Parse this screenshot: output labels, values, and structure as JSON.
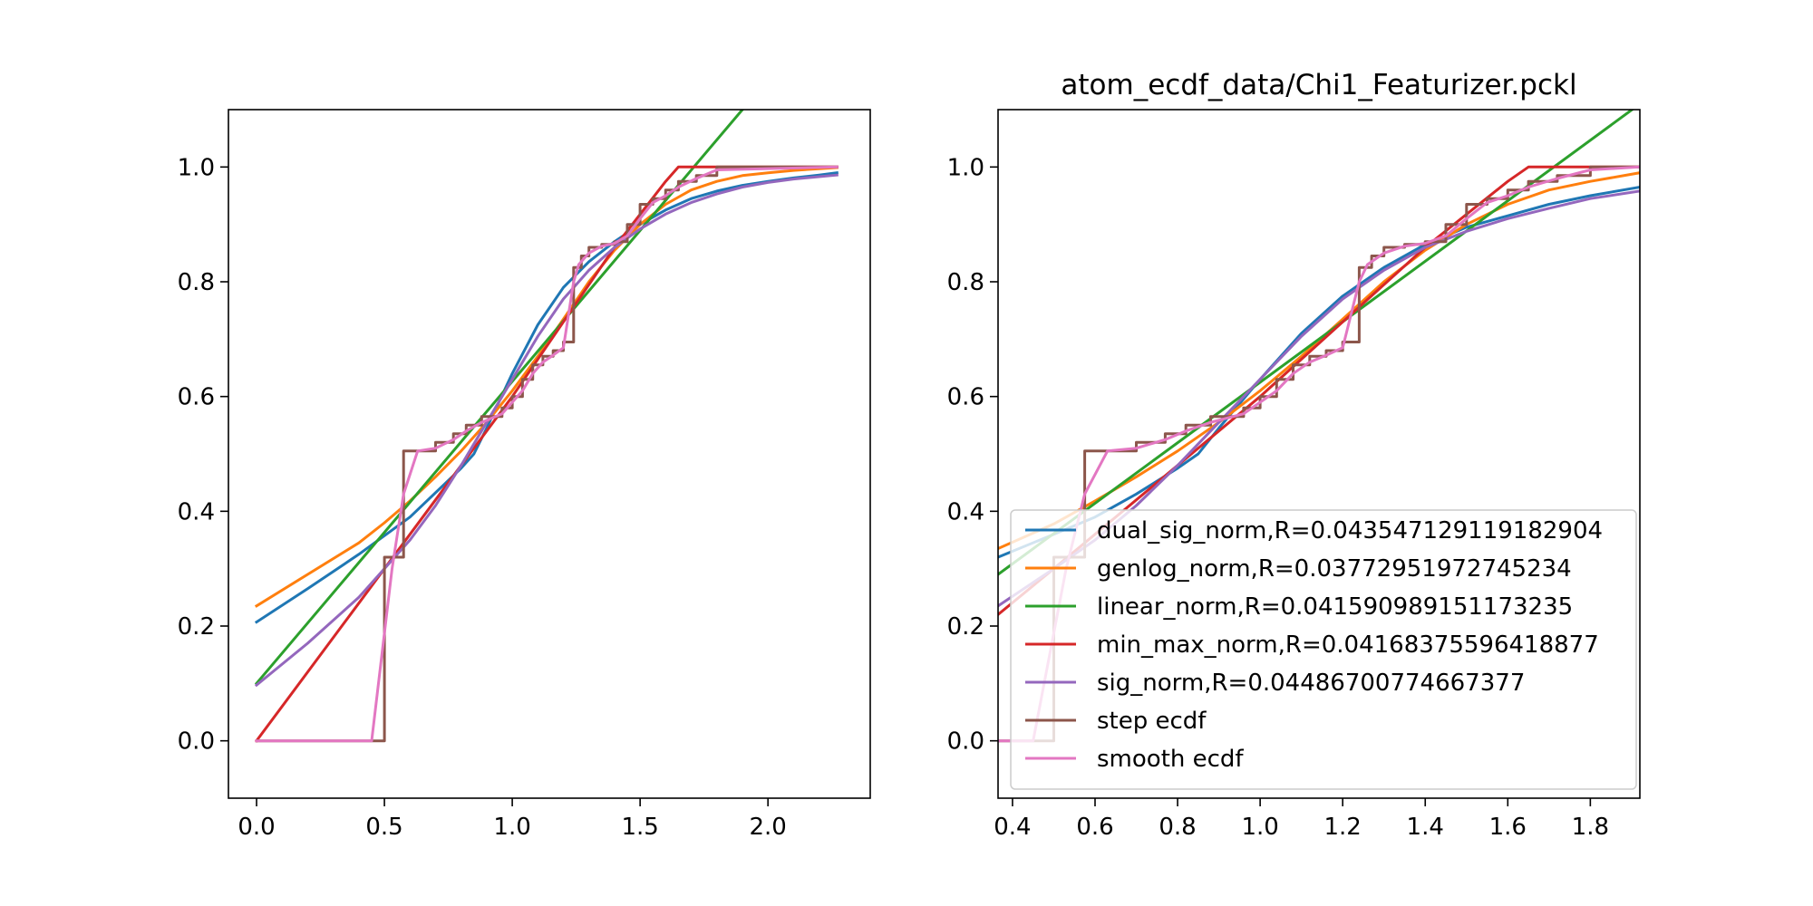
{
  "chart_data": [
    {
      "type": "line",
      "title": "",
      "xlabel": "",
      "ylabel": "",
      "xlim": [
        -0.11,
        2.4
      ],
      "ylim": [
        -0.1,
        1.1
      ],
      "xticks": [
        "0.0",
        "0.5",
        "1.0",
        "1.5",
        "2.0"
      ],
      "xtick_values": [
        0.0,
        0.5,
        1.0,
        1.5,
        2.0
      ],
      "yticks": [
        "0.0",
        "0.2",
        "0.4",
        "0.6",
        "0.8",
        "1.0"
      ],
      "ytick_values": [
        0.0,
        0.2,
        0.4,
        0.6,
        0.8,
        1.0
      ],
      "grid": false,
      "legend": false,
      "series": [
        {
          "name": "dual_sig_norm,R=0.043547129119182904",
          "color": "#1f77b4",
          "step": false,
          "x": [
            0.0,
            0.2,
            0.4,
            0.6,
            0.8,
            0.85,
            0.9,
            1.0,
            1.1,
            1.2,
            1.3,
            1.4,
            1.5,
            1.6,
            1.7,
            1.8,
            1.9,
            2.0,
            2.1,
            2.2,
            2.27
          ],
          "y": [
            0.207,
            0.265,
            0.325,
            0.39,
            0.475,
            0.5,
            0.545,
            0.64,
            0.725,
            0.79,
            0.835,
            0.87,
            0.9,
            0.925,
            0.945,
            0.958,
            0.968,
            0.975,
            0.981,
            0.986,
            0.99
          ]
        },
        {
          "name": "genlog_norm,R=0.03772951972745234",
          "color": "#ff7f0e",
          "step": false,
          "x": [
            0.0,
            0.2,
            0.4,
            0.5,
            0.6,
            0.7,
            0.8,
            0.9,
            1.0,
            1.1,
            1.2,
            1.3,
            1.4,
            1.5,
            1.6,
            1.7,
            1.8,
            1.9,
            2.0,
            2.1,
            2.2,
            2.27
          ],
          "y": [
            0.235,
            0.29,
            0.345,
            0.38,
            0.418,
            0.46,
            0.505,
            0.555,
            0.61,
            0.67,
            0.735,
            0.8,
            0.855,
            0.9,
            0.935,
            0.96,
            0.975,
            0.985,
            0.99,
            0.994,
            0.997,
            0.999
          ]
        },
        {
          "name": "linear_norm,R=0.041590989151173235",
          "color": "#2ca02c",
          "step": false,
          "x": [
            0.0,
            1.9
          ],
          "y": [
            0.1,
            1.1
          ]
        },
        {
          "name": "min_max_norm,R=0.04168375596418877",
          "color": "#d62728",
          "step": false,
          "x": [
            0.0,
            0.4,
            0.5,
            0.8,
            1.0,
            1.2,
            1.4,
            1.6,
            1.65,
            2.27
          ],
          "y": [
            0.0,
            0.24,
            0.3,
            0.48,
            0.6,
            0.73,
            0.86,
            0.975,
            1.0,
            1.0
          ]
        },
        {
          "name": "sig_norm,R=0.04486700774667377",
          "color": "#9467bd",
          "step": false,
          "x": [
            0.0,
            0.2,
            0.4,
            0.6,
            0.7,
            0.8,
            0.9,
            1.0,
            1.1,
            1.2,
            1.3,
            1.4,
            1.5,
            1.6,
            1.7,
            1.8,
            1.9,
            2.0,
            2.1,
            2.27
          ],
          "y": [
            0.097,
            0.17,
            0.25,
            0.35,
            0.41,
            0.48,
            0.555,
            0.63,
            0.705,
            0.77,
            0.82,
            0.86,
            0.892,
            0.918,
            0.938,
            0.953,
            0.965,
            0.973,
            0.979,
            0.986
          ]
        },
        {
          "name": "step ecdf",
          "color": "#8c564b",
          "step": true,
          "x": [
            0.0,
            0.5,
            0.5,
            0.575,
            0.575,
            0.7,
            0.7,
            0.77,
            0.77,
            0.82,
            0.82,
            0.88,
            0.88,
            0.96,
            0.96,
            1.0,
            1.0,
            1.04,
            1.04,
            1.08,
            1.08,
            1.12,
            1.12,
            1.16,
            1.16,
            1.2,
            1.2,
            1.24,
            1.24,
            1.27,
            1.27,
            1.3,
            1.3,
            1.35,
            1.35,
            1.4,
            1.4,
            1.45,
            1.45,
            1.5,
            1.5,
            1.55,
            1.55,
            1.6,
            1.6,
            1.65,
            1.65,
            1.72,
            1.72,
            1.8,
            1.8,
            2.27
          ],
          "y": [
            0.0,
            0.0,
            0.32,
            0.32,
            0.505,
            0.505,
            0.52,
            0.52,
            0.535,
            0.535,
            0.55,
            0.55,
            0.565,
            0.565,
            0.58,
            0.58,
            0.6,
            0.6,
            0.63,
            0.63,
            0.655,
            0.655,
            0.67,
            0.67,
            0.68,
            0.68,
            0.695,
            0.695,
            0.825,
            0.825,
            0.845,
            0.845,
            0.86,
            0.86,
            0.865,
            0.865,
            0.87,
            0.87,
            0.9,
            0.9,
            0.935,
            0.935,
            0.945,
            0.945,
            0.96,
            0.96,
            0.975,
            0.975,
            0.985,
            0.985,
            1.0,
            1.0
          ]
        },
        {
          "name": "smooth ecdf",
          "color": "#e377c2",
          "step": false,
          "x": [
            0.0,
            0.45,
            0.53,
            0.575,
            0.63,
            0.7,
            0.77,
            0.82,
            0.88,
            0.96,
            1.0,
            1.04,
            1.08,
            1.12,
            1.16,
            1.2,
            1.24,
            1.26,
            1.3,
            1.35,
            1.4,
            1.45,
            1.5,
            1.55,
            1.6,
            1.65,
            1.72,
            1.8,
            2.27
          ],
          "y": [
            0.0,
            0.0,
            0.3,
            0.43,
            0.505,
            0.51,
            0.525,
            0.54,
            0.555,
            0.57,
            0.59,
            0.61,
            0.64,
            0.66,
            0.672,
            0.685,
            0.8,
            0.83,
            0.85,
            0.862,
            0.867,
            0.88,
            0.91,
            0.938,
            0.95,
            0.965,
            0.98,
            0.995,
            1.0
          ]
        }
      ]
    },
    {
      "type": "line",
      "title": "atom_ecdf_data/Chi1_Featurizer.pckl",
      "xlabel": "",
      "ylabel": "",
      "xlim": [
        0.365,
        1.92
      ],
      "ylim": [
        -0.1,
        1.1
      ],
      "xticks": [
        "0.4",
        "0.6",
        "0.8",
        "1.0",
        "1.2",
        "1.4",
        "1.6",
        "1.8"
      ],
      "xtick_values": [
        0.4,
        0.6,
        0.8,
        1.0,
        1.2,
        1.4,
        1.6,
        1.8
      ],
      "yticks": [
        "0.0",
        "0.2",
        "0.4",
        "0.6",
        "0.8",
        "1.0"
      ],
      "ytick_values": [
        0.0,
        0.2,
        0.4,
        0.6,
        0.8,
        1.0
      ],
      "grid": false,
      "legend": true,
      "legend_loc": "lower right",
      "series": [
        {
          "name": "dual_sig_norm,R=0.043547129119182904",
          "color": "#1f77b4",
          "step": false,
          "x": [
            0.365,
            0.5,
            0.6,
            0.7,
            0.8,
            0.85,
            0.9,
            1.0,
            1.1,
            1.2,
            1.3,
            1.4,
            1.5,
            1.6,
            1.7,
            1.8,
            1.92
          ],
          "y": [
            0.32,
            0.36,
            0.39,
            0.43,
            0.475,
            0.5,
            0.545,
            0.63,
            0.71,
            0.775,
            0.825,
            0.865,
            0.895,
            0.915,
            0.935,
            0.95,
            0.965
          ]
        },
        {
          "name": "genlog_norm,R=0.03772951972745234",
          "color": "#ff7f0e",
          "step": false,
          "x": [
            0.365,
            0.5,
            0.6,
            0.7,
            0.8,
            0.9,
            1.0,
            1.1,
            1.2,
            1.3,
            1.4,
            1.5,
            1.6,
            1.7,
            1.8,
            1.92
          ],
          "y": [
            0.335,
            0.378,
            0.418,
            0.46,
            0.505,
            0.555,
            0.61,
            0.67,
            0.735,
            0.8,
            0.855,
            0.9,
            0.935,
            0.96,
            0.975,
            0.99
          ]
        },
        {
          "name": "linear_norm,R=0.041590989151173235",
          "color": "#2ca02c",
          "step": false,
          "x": [
            0.365,
            1.92
          ],
          "y": [
            0.29,
            1.11
          ]
        },
        {
          "name": "min_max_norm,R=0.04168375596418877",
          "color": "#d62728",
          "step": false,
          "x": [
            0.365,
            0.5,
            0.6,
            0.8,
            1.0,
            1.2,
            1.4,
            1.6,
            1.65,
            1.92
          ],
          "y": [
            0.22,
            0.3,
            0.36,
            0.48,
            0.6,
            0.73,
            0.86,
            0.975,
            1.0,
            1.0
          ]
        },
        {
          "name": "sig_norm,R=0.04486700774667377",
          "color": "#9467bd",
          "step": false,
          "x": [
            0.365,
            0.5,
            0.6,
            0.7,
            0.8,
            0.9,
            1.0,
            1.1,
            1.2,
            1.3,
            1.4,
            1.5,
            1.6,
            1.7,
            1.8,
            1.92
          ],
          "y": [
            0.235,
            0.3,
            0.35,
            0.41,
            0.48,
            0.555,
            0.63,
            0.705,
            0.77,
            0.82,
            0.86,
            0.888,
            0.91,
            0.928,
            0.945,
            0.958
          ]
        },
        {
          "name": "step ecdf",
          "color": "#8c564b",
          "step": true,
          "x": [
            0.365,
            0.5,
            0.5,
            0.575,
            0.575,
            0.7,
            0.7,
            0.77,
            0.77,
            0.82,
            0.82,
            0.88,
            0.88,
            0.96,
            0.96,
            1.0,
            1.0,
            1.04,
            1.04,
            1.08,
            1.08,
            1.12,
            1.12,
            1.16,
            1.16,
            1.2,
            1.2,
            1.24,
            1.24,
            1.27,
            1.27,
            1.3,
            1.3,
            1.35,
            1.35,
            1.4,
            1.4,
            1.45,
            1.45,
            1.5,
            1.5,
            1.55,
            1.55,
            1.6,
            1.6,
            1.65,
            1.65,
            1.72,
            1.72,
            1.8,
            1.8,
            1.92
          ],
          "y": [
            0.0,
            0.0,
            0.32,
            0.32,
            0.505,
            0.505,
            0.52,
            0.52,
            0.535,
            0.535,
            0.55,
            0.55,
            0.565,
            0.565,
            0.58,
            0.58,
            0.6,
            0.6,
            0.63,
            0.63,
            0.655,
            0.655,
            0.67,
            0.67,
            0.68,
            0.68,
            0.695,
            0.695,
            0.825,
            0.825,
            0.845,
            0.845,
            0.86,
            0.86,
            0.865,
            0.865,
            0.87,
            0.87,
            0.9,
            0.9,
            0.935,
            0.935,
            0.945,
            0.945,
            0.96,
            0.96,
            0.975,
            0.975,
            0.985,
            0.985,
            1.0,
            1.0
          ]
        },
        {
          "name": "smooth ecdf",
          "color": "#e377c2",
          "step": false,
          "x": [
            0.365,
            0.45,
            0.53,
            0.575,
            0.63,
            0.7,
            0.77,
            0.82,
            0.88,
            0.96,
            1.0,
            1.04,
            1.08,
            1.12,
            1.16,
            1.2,
            1.24,
            1.26,
            1.3,
            1.35,
            1.4,
            1.45,
            1.5,
            1.55,
            1.6,
            1.65,
            1.72,
            1.8,
            1.92
          ],
          "y": [
            0.0,
            0.0,
            0.3,
            0.43,
            0.505,
            0.51,
            0.525,
            0.54,
            0.555,
            0.57,
            0.59,
            0.61,
            0.64,
            0.66,
            0.672,
            0.685,
            0.8,
            0.83,
            0.85,
            0.862,
            0.867,
            0.88,
            0.91,
            0.938,
            0.95,
            0.965,
            0.98,
            0.995,
            1.0
          ]
        }
      ]
    }
  ]
}
